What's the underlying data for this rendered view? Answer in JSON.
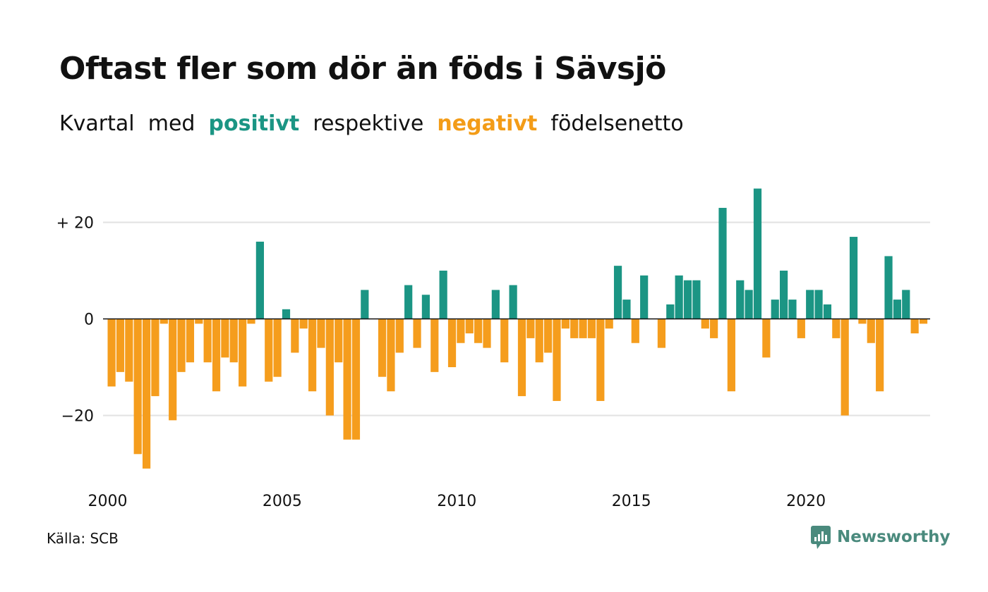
{
  "title": "Oftast fler som dör än föds i Sävsjö",
  "subtitle": {
    "part1": "Kvartal",
    "part2": "med",
    "positive": "positivt",
    "part3": "respektive",
    "negative": "negativt",
    "part4": "födelsenetto"
  },
  "source": "Källa: SCB",
  "brand": "Newsworthy",
  "colors": {
    "positive": "#1b9584",
    "negative": "#f59d1d",
    "grid": "#e2e2e2",
    "axis": "#111111",
    "brand": "#4a8a7d"
  },
  "chart_data": {
    "type": "bar",
    "x_start": "2000 Q1",
    "interval": "quarter",
    "x_ticks": [
      "2000",
      "2005",
      "2010",
      "2015",
      "2020"
    ],
    "y_ticks": [
      20,
      0,
      -20
    ],
    "y_tick_labels": [
      "+ 20",
      "0",
      "−20"
    ],
    "ylim": [
      -33,
      30
    ],
    "grid": true,
    "values": [
      -14,
      -11,
      -13,
      -28,
      -31,
      -16,
      -1,
      -21,
      -11,
      -9,
      -1,
      -9,
      -15,
      -8,
      -9,
      -14,
      -1,
      16,
      -13,
      -12,
      2,
      -7,
      -2,
      -15,
      -6,
      -20,
      -9,
      -25,
      -25,
      6,
      0,
      -12,
      -15,
      -7,
      7,
      -6,
      5,
      -11,
      10,
      -10,
      -5,
      -3,
      -5,
      -6,
      6,
      -9,
      7,
      -16,
      -4,
      -9,
      -7,
      -17,
      -2,
      -4,
      -4,
      -4,
      -17,
      -2,
      11,
      4,
      -5,
      9,
      0,
      -6,
      3,
      9,
      8,
      8,
      -2,
      -4,
      23,
      -15,
      8,
      6,
      27,
      -8,
      4,
      10,
      4,
      -4,
      6,
      6,
      3,
      -4,
      -20,
      17,
      -1,
      -5,
      -15,
      13,
      4,
      6,
      -3,
      -1
    ]
  }
}
